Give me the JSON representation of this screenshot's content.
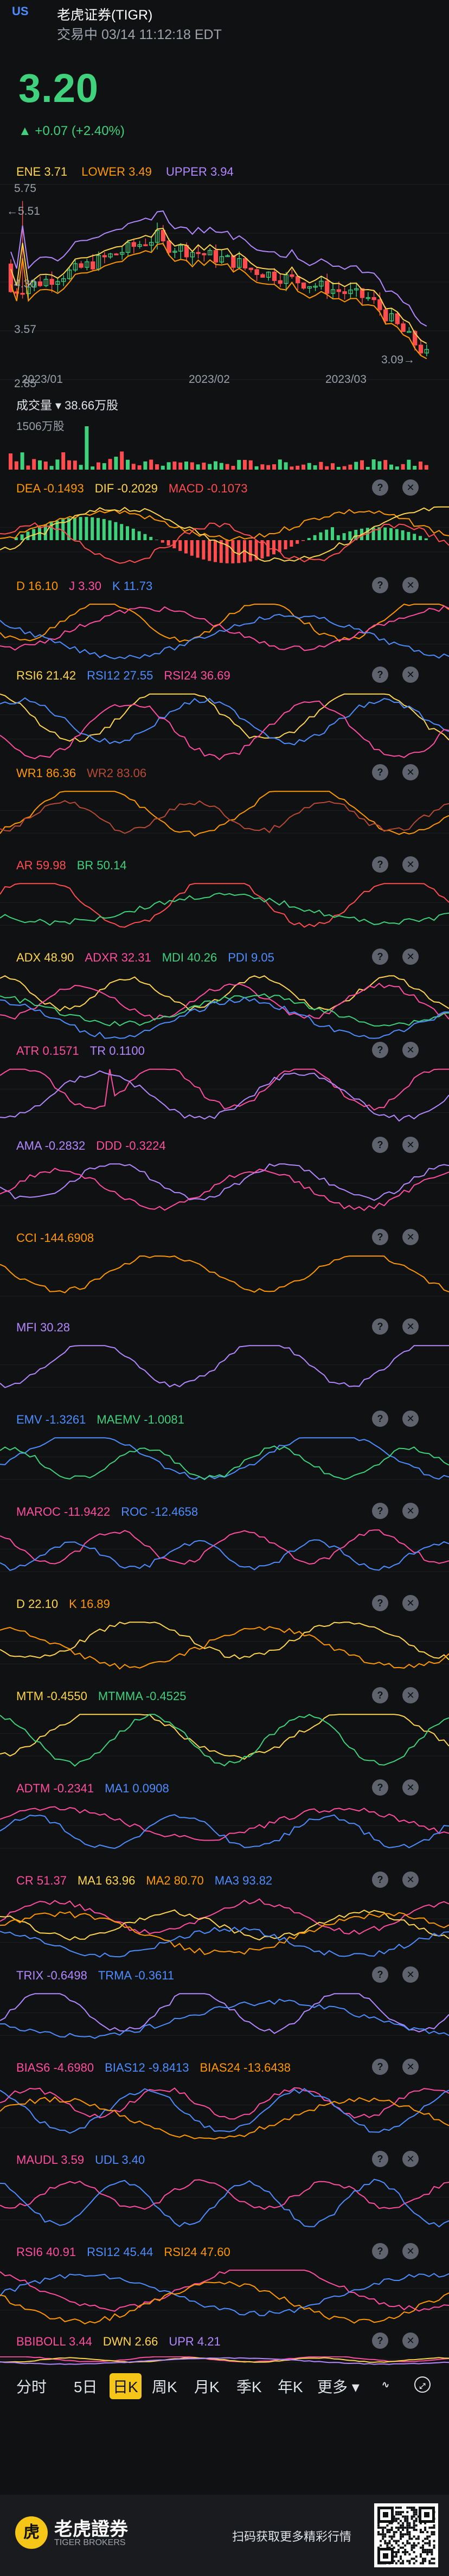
{
  "header": {
    "market": "US",
    "title": "老虎证券(TIGR)",
    "status": "交易中 03/14 11:12:18 EDT"
  },
  "quote": {
    "price": "3.20",
    "change": "▲ +0.07 (+2.40%)"
  },
  "kline": {
    "ene": [
      "ENE 3.71",
      "LOWER 3.49",
      "UPPER 3.94"
    ],
    "yaxis": [
      "5.75",
      "4.30",
      "3.57",
      "2.85"
    ],
    "high_mark": "5.51",
    "low_mark": "3.09",
    "dates": [
      "2023/01",
      "2023/02",
      "2023/03"
    ],
    "colors": {
      "up": "#3fd17c",
      "down": "#ff4d4f",
      "mid": "#ffd54f",
      "upper": "#b388ff",
      "lower": "#ff9800"
    }
  },
  "volume": {
    "label": "成交量",
    "value": "38.66万股",
    "axis": "1506万股"
  },
  "indicators": [
    {
      "id": "macd",
      "labels": [
        {
          "t": "DEA -0.1493",
          "c": "#ff9800"
        },
        {
          "t": "DIF -0.2029",
          "c": "#ffd54f"
        },
        {
          "t": "MACD -0.1073",
          "c": "#ff4d4f"
        }
      ]
    },
    {
      "id": "kdj",
      "labels": [
        {
          "t": "D 16.10",
          "c": "#ff9800"
        },
        {
          "t": "J 3.30",
          "c": "#ff4d9f"
        },
        {
          "t": "K 11.73",
          "c": "#4d8dff"
        }
      ]
    },
    {
      "id": "rsi",
      "labels": [
        {
          "t": "RSI6 21.42",
          "c": "#ffd54f"
        },
        {
          "t": "RSI12 27.55",
          "c": "#4d8dff"
        },
        {
          "t": "RSI24 36.69",
          "c": "#ff4d9f"
        }
      ]
    },
    {
      "id": "wr",
      "labels": [
        {
          "t": "WR1 86.36",
          "c": "#ff9800"
        },
        {
          "t": "WR2 83.06",
          "c": "#b74a34"
        }
      ]
    },
    {
      "id": "arbr",
      "labels": [
        {
          "t": "AR 59.98",
          "c": "#ff4d4f"
        },
        {
          "t": "BR 50.14",
          "c": "#3fd17c"
        }
      ]
    },
    {
      "id": "dmi",
      "labels": [
        {
          "t": "ADX 48.90",
          "c": "#ffd54f"
        },
        {
          "t": "ADXR 32.31",
          "c": "#ff4d9f"
        },
        {
          "t": "MDI 40.26",
          "c": "#3fd17c"
        },
        {
          "t": "PDI 9.05",
          "c": "#4d8dff"
        }
      ]
    },
    {
      "id": "atr",
      "labels": [
        {
          "t": "ATR 0.1571",
          "c": "#ff4d9f"
        },
        {
          "t": "TR 0.1100",
          "c": "#b388ff"
        }
      ]
    },
    {
      "id": "dma",
      "labels": [
        {
          "t": "AMA -0.2832",
          "c": "#b388ff"
        },
        {
          "t": "DDD -0.3224",
          "c": "#ff4d9f"
        }
      ]
    },
    {
      "id": "cci",
      "labels": [
        {
          "t": "CCI -144.6908",
          "c": "#ff9800"
        }
      ]
    },
    {
      "id": "mfi",
      "labels": [
        {
          "t": "MFI 30.28",
          "c": "#b388ff"
        }
      ]
    },
    {
      "id": "emv",
      "labels": [
        {
          "t": "EMV -1.3261",
          "c": "#4d8dff"
        },
        {
          "t": "MAEMV -1.0081",
          "c": "#3fd17c"
        }
      ]
    },
    {
      "id": "roc",
      "labels": [
        {
          "t": "MAROC -11.9422",
          "c": "#ff4d9f"
        },
        {
          "t": "ROC -12.4658",
          "c": "#4d8dff"
        }
      ]
    },
    {
      "id": "dk",
      "labels": [
        {
          "t": "D 22.10",
          "c": "#ffd54f"
        },
        {
          "t": "K 16.89",
          "c": "#ff9800"
        }
      ]
    },
    {
      "id": "mtm",
      "labels": [
        {
          "t": "MTM -0.4550",
          "c": "#ffd54f"
        },
        {
          "t": "MTMMA -0.4525",
          "c": "#3fd17c"
        }
      ]
    },
    {
      "id": "adtm",
      "labels": [
        {
          "t": "ADTM -0.2341",
          "c": "#ff4d9f"
        },
        {
          "t": "MA1 0.0908",
          "c": "#4d8dff"
        }
      ]
    },
    {
      "id": "cr",
      "labels": [
        {
          "t": "CR 51.37",
          "c": "#ff4d9f"
        },
        {
          "t": "MA1 63.96",
          "c": "#ffd54f"
        },
        {
          "t": "MA2 80.70",
          "c": "#ff9800"
        },
        {
          "t": "MA3 93.82",
          "c": "#4d8dff"
        }
      ]
    },
    {
      "id": "trix",
      "labels": [
        {
          "t": "TRIX -0.6498",
          "c": "#b388ff"
        },
        {
          "t": "TRMA -0.3611",
          "c": "#4d8dff"
        }
      ]
    },
    {
      "id": "bias",
      "labels": [
        {
          "t": "BIAS6 -4.6980",
          "c": "#ff4d9f"
        },
        {
          "t": "BIAS12 -9.8413",
          "c": "#4d8dff"
        },
        {
          "t": "BIAS24 -13.6438",
          "c": "#ff9800"
        }
      ]
    },
    {
      "id": "maudl",
      "labels": [
        {
          "t": "MAUDL 3.59",
          "c": "#ff4d9f"
        },
        {
          "t": "UDL 3.40",
          "c": "#4d8dff"
        }
      ]
    },
    {
      "id": "rsi2",
      "labels": [
        {
          "t": "RSI6 40.91",
          "c": "#ff4d9f"
        },
        {
          "t": "RSI12 45.44",
          "c": "#4d8dff"
        },
        {
          "t": "RSI24 47.60",
          "c": "#ff9800"
        }
      ]
    },
    {
      "id": "bbiboll",
      "labels": [
        {
          "t": "BBIBOLL 3.44",
          "c": "#ff4d9f"
        },
        {
          "t": "DWN 2.66",
          "c": "#ffd54f"
        },
        {
          "t": "UPR 4.21",
          "c": "#b388ff"
        }
      ]
    }
  ],
  "tabs": [
    "分时",
    "5日",
    "日K",
    "周K",
    "月K",
    "季K",
    "年K",
    "更多 ▾"
  ],
  "tab_selected": "日K",
  "footer": {
    "brand": "老虎證券",
    "brand_en": "TIGER BROKERS",
    "cta": "扫码获取更多精彩行情"
  }
}
